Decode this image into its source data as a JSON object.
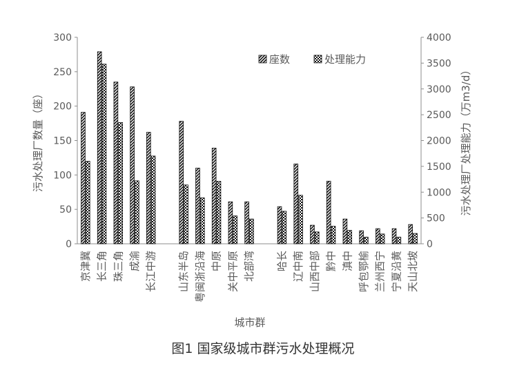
{
  "caption": "图1 国家级城市群污水处理概况",
  "chart_data": {
    "type": "bar",
    "groups": [
      [
        "京津冀",
        "长三角",
        "珠三角",
        "成渝",
        "长江中游"
      ],
      [
        "山东半岛",
        "粤闽浙沿海",
        "中原",
        "关中平原",
        "北部湾"
      ],
      [
        "哈长",
        "辽中南",
        "山西中部",
        "黔中",
        "滇中",
        "呼包鄂榆",
        "兰州西宁",
        "宁夏沿黄",
        "天山北坡"
      ]
    ],
    "categories": [
      "京津冀",
      "长三角",
      "珠三角",
      "成渝",
      "长江中游",
      "山东半岛",
      "粤闽浙沿海",
      "中原",
      "关中平原",
      "北部湾",
      "哈长",
      "辽中南",
      "山西中部",
      "黔中",
      "滇中",
      "呼包鄂榆",
      "兰州西宁",
      "宁夏沿黄",
      "天山北坡"
    ],
    "series": [
      {
        "name": "座数",
        "axis": "left",
        "pattern": "hatch",
        "values": [
          191,
          279,
          235,
          228,
          162,
          178,
          110,
          139,
          61,
          61,
          54,
          116,
          27,
          91,
          36,
          19,
          22,
          22,
          28
        ]
      },
      {
        "name": "处理能力",
        "axis": "right",
        "pattern": "dots",
        "values": [
          1600,
          3480,
          2350,
          1220,
          1700,
          1140,
          890,
          1210,
          540,
          480,
          630,
          940,
          230,
          340,
          260,
          130,
          190,
          130,
          200
        ]
      }
    ],
    "xlabel": "城市群",
    "ylabel": "污水处理厂数量（座）",
    "y2label": "污水处理厂处理能力（万m3/d）",
    "ylim": [
      0,
      300
    ],
    "y2lim": [
      0,
      4000
    ],
    "yticks": [
      0,
      50,
      100,
      150,
      200,
      250,
      300
    ],
    "y2ticks": [
      0,
      500,
      1000,
      1500,
      2000,
      2500,
      3000,
      3500,
      4000
    ],
    "grid": false,
    "legend": "top-right"
  }
}
